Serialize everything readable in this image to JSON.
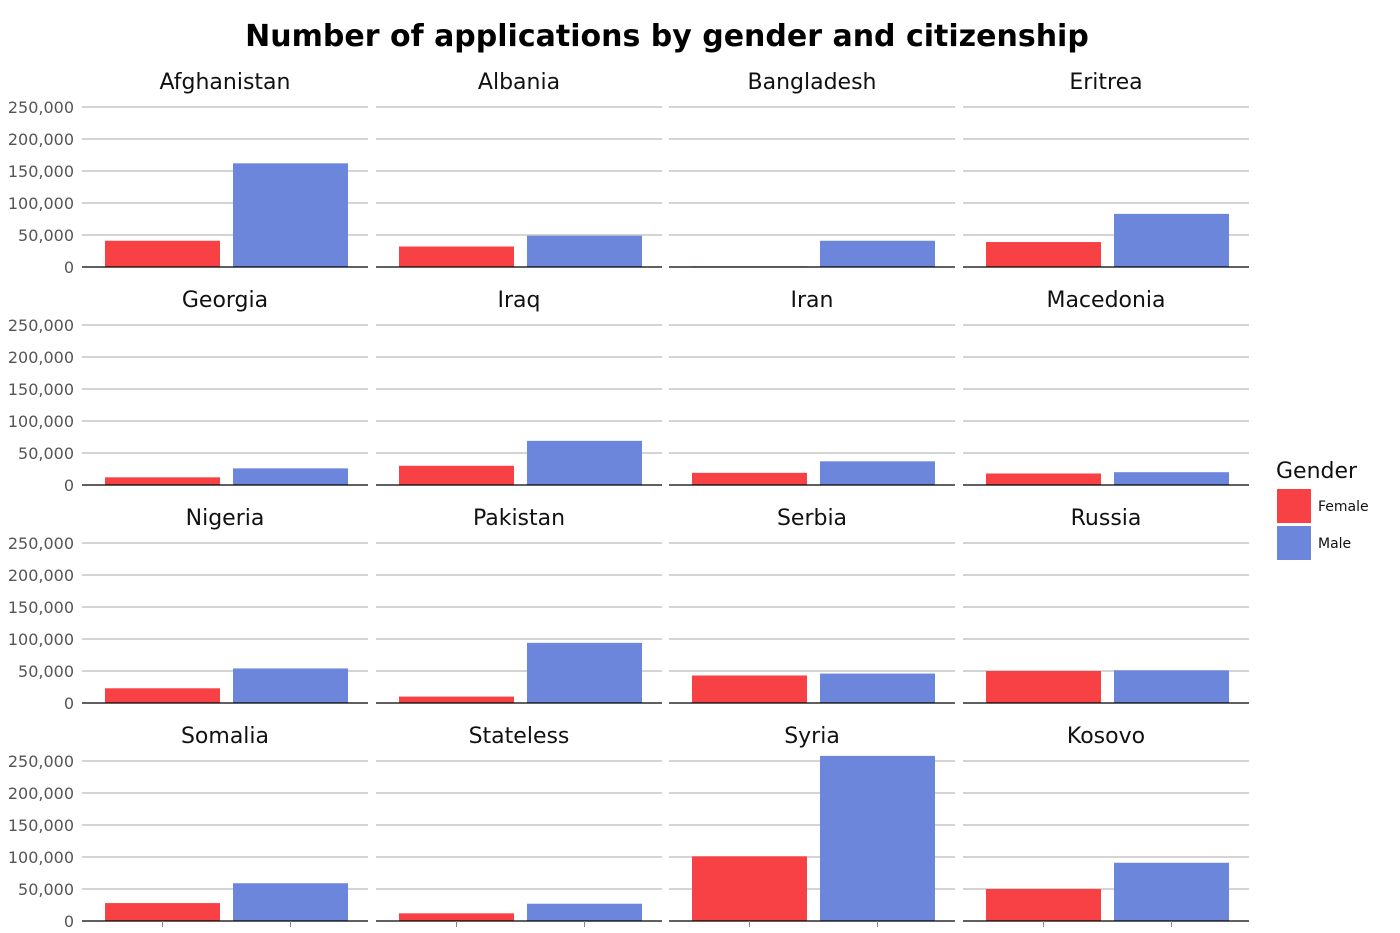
{
  "chart_data": {
    "type": "bar",
    "title": "Number of applications by gender and citizenship",
    "xlabel": "",
    "ylabel": "",
    "ylim": [
      0,
      250000
    ],
    "yticks": [
      0,
      50000,
      100000,
      150000,
      200000,
      250000
    ],
    "ytick_labels": [
      "0",
      "50,000",
      "100,000",
      "150,000",
      "200,000",
      "250,000"
    ],
    "grid": true,
    "legend_title": "Gender",
    "legend_position": "right",
    "categories": [
      "Female",
      "Male"
    ],
    "colors": {
      "Female": "#f84144",
      "Male": "#6c86db"
    },
    "facet_rows": 4,
    "facet_cols": 4,
    "facets": [
      {
        "name": "Afghanistan",
        "values": [
          41000,
          162000
        ]
      },
      {
        "name": "Albania",
        "values": [
          32000,
          49000
        ]
      },
      {
        "name": "Bangladesh",
        "values": [
          1000,
          41000
        ]
      },
      {
        "name": "Eritrea",
        "values": [
          39000,
          83000
        ]
      },
      {
        "name": "Georgia",
        "values": [
          12000,
          26000
        ]
      },
      {
        "name": "Iraq",
        "values": [
          30000,
          69000
        ]
      },
      {
        "name": "Iran",
        "values": [
          19000,
          37000
        ]
      },
      {
        "name": "Macedonia",
        "values": [
          18000,
          20000
        ]
      },
      {
        "name": "Nigeria",
        "values": [
          23000,
          54000
        ]
      },
      {
        "name": "Pakistan",
        "values": [
          10000,
          94000
        ]
      },
      {
        "name": "Serbia",
        "values": [
          43000,
          46000
        ]
      },
      {
        "name": "Russia",
        "values": [
          50000,
          51000
        ]
      },
      {
        "name": "Somalia",
        "values": [
          28000,
          59000
        ]
      },
      {
        "name": "Stateless",
        "values": [
          12000,
          27000
        ]
      },
      {
        "name": "Syria",
        "values": [
          101000,
          258000
        ]
      },
      {
        "name": "Kosovo",
        "values": [
          50000,
          91000
        ]
      }
    ]
  }
}
